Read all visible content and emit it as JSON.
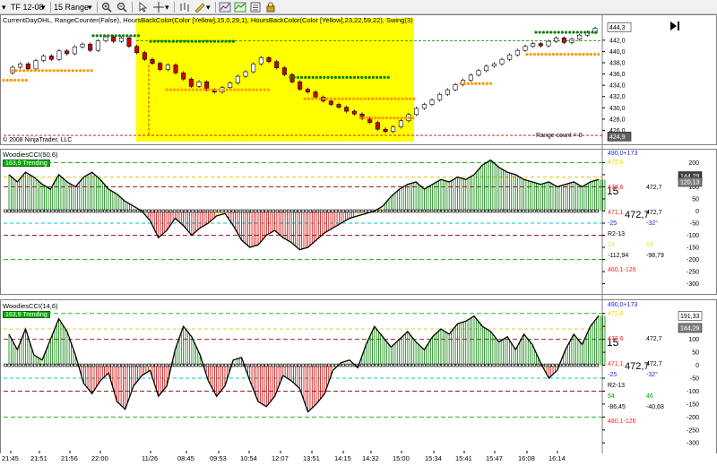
{
  "toolbar": {
    "instrument": "TF 12-08",
    "period": "15 Range"
  },
  "price_panel": {
    "indicators_label": "CurrentDayOHL, RangeCounter(False), HoursBackColor(Color [Yellow],15,0,29,1), HoursBackColor(Color [Yellow],23,22,59,22), Swing(3)",
    "copyright": "© 2008 NinjaTrader, LLC",
    "range_count": "Range count = 0",
    "y_ticks": [
      "442,0",
      "440,0",
      "438,0",
      "436,0",
      "434,0",
      "432,0",
      "430,0",
      "428,0",
      "426,0"
    ],
    "last_price_tag": "444,3",
    "low_price_tag": "424,9"
  },
  "cci_panel_1": {
    "title": "WoodiesCCI(50,6)",
    "trend_badge": "163,9 Trending",
    "sideways_big": "15",
    "level_big": "472,7",
    "pad_rows": [
      {
        "text": "490,0+173",
        "color": "#2020ff"
      },
      {
        "text": "472,6",
        "color": "#e0e000"
      },
      {
        "text": "472,6",
        "color": "#ff2020"
      },
      {
        "text": "472,7",
        "color": "#000000"
      },
      {
        "text": "471,1",
        "color": "#ff2020"
      },
      {
        "text": "472,7",
        "color": "#000000"
      },
      {
        "text": "-25",
        "color": "#2020ff"
      },
      {
        "text": "-32°",
        "color": "#2020ff"
      },
      {
        "text": "R2-13",
        "color": "#000000"
      },
      {
        "text": "13",
        "color": "#e0e000"
      },
      {
        "text": "13",
        "color": "#e0e000"
      },
      {
        "text": "-112,94",
        "color": "#000000"
      },
      {
        "text": "-98,79",
        "color": "#000000"
      },
      {
        "text": "460,1-126",
        "color": "#ff2020"
      }
    ],
    "y_ticks": [
      "200",
      "150",
      "100",
      "50",
      "0",
      "-50",
      "-100",
      "-150",
      "-200",
      "-250",
      "-300"
    ],
    "value_tags": [
      "144,29",
      "120,13"
    ]
  },
  "cci_panel_2": {
    "title": "WoodiesCCI(14,6)",
    "trend_badge": "163,9 Trending",
    "sideways_big": "15",
    "level_big": "472,7",
    "pad_rows": [
      {
        "text": "490,0+173",
        "color": "#2020ff"
      },
      {
        "text": "472,6",
        "color": "#e0e000"
      },
      {
        "text": "472,6",
        "color": "#ff2020"
      },
      {
        "text": "472,7",
        "color": "#000000"
      },
      {
        "text": "471,1",
        "color": "#ff2020"
      },
      {
        "text": "472,7",
        "color": "#000000"
      },
      {
        "text": "-25",
        "color": "#2020ff"
      },
      {
        "text": "-32°",
        "color": "#2020ff"
      },
      {
        "text": "R2-13",
        "color": "#000000"
      },
      {
        "text": "54",
        "color": "#00a000"
      },
      {
        "text": "46",
        "color": "#00a000"
      },
      {
        "text": "-86,45",
        "color": "#000000"
      },
      {
        "text": "-40,68",
        "color": "#000000"
      },
      {
        "text": "460,1-126",
        "color": "#ff2020"
      }
    ],
    "y_ticks": [
      "200",
      "150",
      "100",
      "50",
      "0",
      "-50",
      "-100",
      "-150",
      "-200",
      "-250",
      "-300"
    ],
    "value_tags": [
      "191,33",
      "144,29"
    ]
  },
  "x_axis": {
    "ticks": [
      "21:45",
      "21:51",
      "21:56",
      "22:00",
      "11/26",
      "08:45",
      "09:53",
      "10:54",
      "12:07",
      "13:51",
      "14:15",
      "14:32",
      "15:00",
      "15:34",
      "15:41",
      "15:47",
      "16:08",
      "16:14"
    ]
  },
  "colors": {
    "highlight": "#ffff00",
    "up_bar": "#ffffff",
    "down_bar": "#cc0000",
    "resistance_dots": "#008000",
    "support_dots": "#ff9900",
    "cci_up_hist": "#008000",
    "cci_down_hist": "#cc0000"
  },
  "chart_data": {
    "type": "line",
    "note_series": "approximate price close per bar and CCI values read from the screenshot",
    "price_close": [
      437.2,
      437.8,
      436.9,
      438.4,
      439.2,
      438.6,
      440.1,
      439.6,
      440.8,
      441.3,
      440.2,
      441.9,
      442.6,
      441.8,
      442.4,
      440.9,
      439.8,
      438.6,
      437.9,
      436.8,
      437.6,
      436.2,
      435.1,
      433.8,
      434.6,
      433.2,
      432.8,
      433.6,
      434.4,
      435.6,
      436.4,
      437.8,
      438.9,
      438.2,
      437.1,
      435.9,
      434.6,
      433.3,
      432.8,
      431.9,
      431.2,
      430.6,
      430.1,
      429.4,
      428.9,
      428.1,
      427.4,
      426.2,
      425.8,
      426.6,
      427.7,
      428.8,
      429.9,
      430.6,
      431.4,
      432.4,
      433.2,
      434.1,
      434.9,
      435.8,
      436.6,
      437.4,
      437.8,
      438.6,
      439.4,
      440.2,
      440.9,
      441.4,
      441.0,
      441.8,
      442.4,
      441.6,
      442.2,
      442.9,
      443.4,
      444.1
    ],
    "cci_50": [
      150,
      120,
      160,
      140,
      110,
      90,
      150,
      120,
      100,
      140,
      160,
      130,
      90,
      70,
      40,
      20,
      0,
      -40,
      -110,
      -80,
      -30,
      -60,
      -100,
      -70,
      -50,
      -20,
      -10,
      -60,
      -120,
      -150,
      -140,
      -100,
      -80,
      -110,
      -130,
      -160,
      -150,
      -120,
      -90,
      -70,
      -50,
      -30,
      -20,
      -10,
      0,
      20,
      60,
      90,
      110,
      120,
      90,
      110,
      130,
      120,
      140,
      130,
      150,
      190,
      210,
      180,
      160,
      150,
      130,
      120,
      110,
      120,
      100,
      110,
      120,
      100,
      120,
      130
    ],
    "cci_14": [
      120,
      60,
      140,
      40,
      20,
      100,
      180,
      130,
      40,
      -70,
      -110,
      -60,
      -30,
      -140,
      -170,
      -80,
      -40,
      -20,
      -120,
      -80,
      60,
      150,
      110,
      40,
      -60,
      -120,
      -80,
      20,
      30,
      -60,
      -140,
      -160,
      -120,
      -40,
      -60,
      -90,
      -180,
      -150,
      -110,
      -20,
      10,
      20,
      -10,
      80,
      150,
      110,
      70,
      100,
      130,
      90,
      60,
      110,
      140,
      120,
      160,
      170,
      190,
      150,
      130,
      90,
      110,
      60,
      120,
      80,
      10,
      -50,
      -20,
      60,
      120,
      80,
      150,
      191
    ],
    "y_ranges": {
      "price": [
        424,
        445
      ],
      "cci": [
        -320,
        220
      ]
    }
  }
}
